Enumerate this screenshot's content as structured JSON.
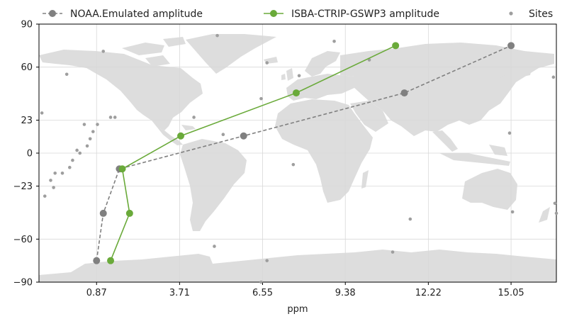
{
  "chart_data": {
    "type": "line",
    "title": "",
    "xlabel": "ppm",
    "ylabel": "",
    "xlim": [
      -1.1,
      16.6
    ],
    "ylim": [
      -90,
      90
    ],
    "x_ticks": [
      0.87,
      3.71,
      6.55,
      9.38,
      12.22,
      15.05
    ],
    "x_tick_labels": [
      "0.87",
      "3.71",
      "6.55",
      "9.38",
      "12.22",
      "15.05"
    ],
    "y_ticks": [
      90,
      60,
      23,
      0,
      -23,
      -60,
      -90
    ],
    "y_tick_labels": [
      "90",
      "60",
      "23",
      "0",
      "−23",
      "−60",
      "−90"
    ],
    "grid": true,
    "background": "world map",
    "legend_position": "top",
    "series": [
      {
        "name": "NOAA.Emulated amplitude",
        "style": "dashed",
        "color": "#808080",
        "x": [
          0.87,
          1.1,
          1.65,
          5.9,
          11.4,
          15.05
        ],
        "y": [
          -75,
          -42,
          -11,
          12,
          42,
          75
        ]
      },
      {
        "name": "ISBA-CTRIP-GSWP3 amplitude",
        "style": "solid",
        "color": "#6aaa3a",
        "x": [
          1.35,
          2.0,
          1.75,
          3.75,
          7.7,
          11.1
        ],
        "y": [
          -75,
          -42,
          -11,
          12,
          42,
          75
        ]
      },
      {
        "name": "Sites",
        "style": "points",
        "color": "#9e9e9e",
        "x": [
          -1.0,
          -0.9,
          -0.7,
          -0.6,
          -0.55,
          -0.3,
          -0.15,
          -0.05,
          0.05,
          0.2,
          0.3,
          0.45,
          0.55,
          0.65,
          0.75,
          0.9,
          1.1,
          1.35,
          1.5,
          4.2,
          4.9,
          5.0,
          5.2,
          6.5,
          6.7,
          7.6,
          7.8,
          9.0,
          10.2,
          11.0,
          11.6,
          16.5,
          16.6,
          15.0,
          15.1,
          16.55,
          6.5,
          6.7
        ],
        "y": [
          28,
          -30,
          -19,
          -24,
          -14,
          -14,
          55,
          -10,
          -5,
          2,
          0,
          20,
          5,
          10,
          15,
          20,
          71,
          25,
          25,
          25,
          -65,
          82,
          13,
          38,
          -75,
          -8,
          54,
          78,
          65,
          -69,
          -46,
          53,
          -42,
          14,
          -41,
          -35,
          -90,
          63
        ]
      }
    ]
  }
}
